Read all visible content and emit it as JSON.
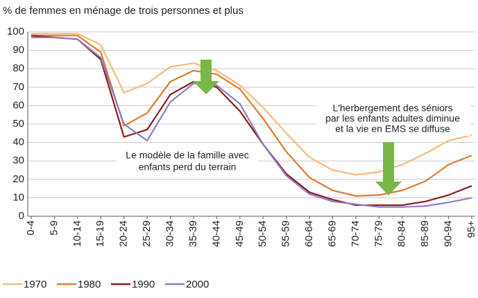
{
  "chart_data": {
    "type": "line",
    "title": "% de femmes en ménage de trois personnes et plus",
    "categories": [
      "0-4",
      "5-9",
      "10-14",
      "15-19",
      "20-24",
      "25-29",
      "30-34",
      "35-39",
      "40-44",
      "45-49",
      "50-54",
      "55-59",
      "60-64",
      "65-69",
      "70-74",
      "75-79",
      "80-84",
      "85-89",
      "90-94",
      "95+"
    ],
    "series": [
      {
        "name": "1970",
        "color": "#f8b97c",
        "values": [
          99,
          99,
          99,
          93,
          67,
          72,
          81,
          83,
          79,
          71,
          59,
          45,
          32,
          25,
          22.5,
          24,
          28,
          34,
          41,
          44
        ]
      },
      {
        "name": "1980",
        "color": "#e07b2e",
        "values": [
          98,
          98,
          98,
          89,
          49,
          56,
          73,
          79,
          77,
          69,
          53,
          35,
          21,
          14,
          11,
          11.5,
          14,
          19,
          28,
          33
        ]
      },
      {
        "name": "1990",
        "color": "#8b1a1a",
        "values": [
          98,
          97,
          96,
          85,
          43,
          47,
          66,
          73,
          70,
          57,
          39,
          23,
          13,
          9,
          6,
          6,
          6,
          8,
          11.5,
          16.5
        ]
      },
      {
        "name": "2000",
        "color": "#8e7cc3",
        "values": [
          97,
          97,
          96,
          86,
          50,
          41,
          62,
          72,
          71,
          61,
          39,
          22,
          12,
          8,
          6.5,
          5,
          5,
          5.5,
          7.5,
          10
        ]
      }
    ],
    "annotations": [
      {
        "lines": [
          "L'herbergement des séniors",
          "par les enfants adultes diminue",
          "et la vie en EMS se diffuse"
        ]
      },
      {
        "lines": [
          "Le modèle de la famille avec",
          "enfants perd du terrain"
        ]
      }
    ],
    "ylim": [
      0,
      100
    ],
    "yticks": [
      0,
      10,
      20,
      30,
      40,
      50,
      60,
      70,
      80,
      90,
      100
    ],
    "grid": true
  }
}
